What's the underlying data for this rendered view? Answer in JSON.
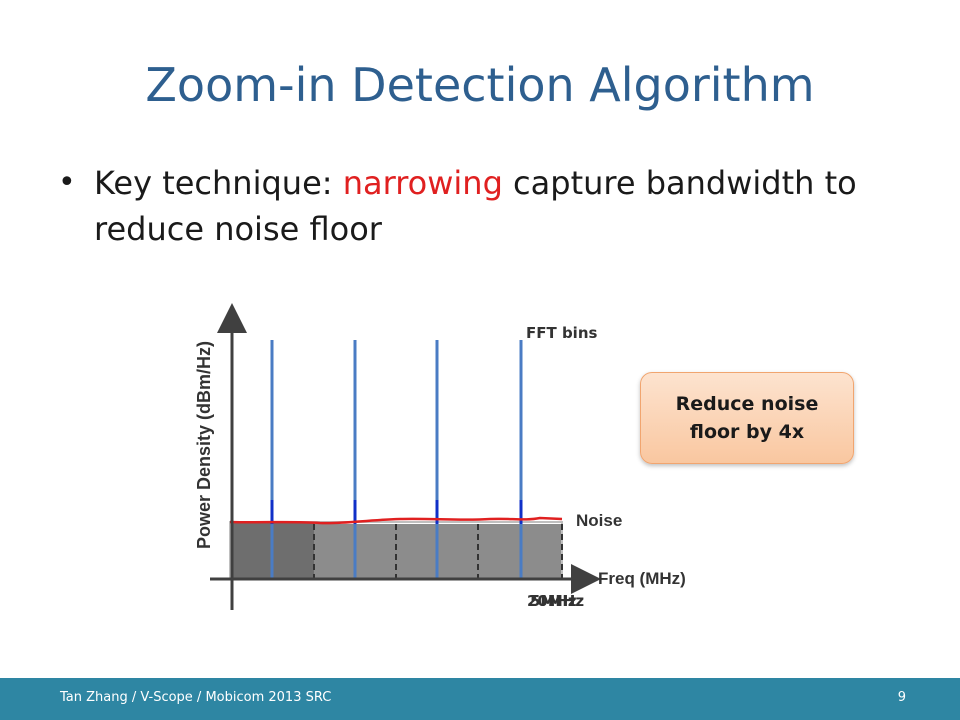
{
  "slide": {
    "title": "Zoom-in Detection Algorithm",
    "bullet": {
      "prefix": "Key technique: ",
      "highlight": "narrowing",
      "suffix": " capture bandwidth to reduce noise floor"
    }
  },
  "diagram": {
    "y_axis_label": "Power Density (dBm/Hz)",
    "x_axis_label": "Freq (MHz)",
    "fft_label": "FFT bins",
    "noise_label": "Noise",
    "bandwidth_label_1": "20MHz",
    "bandwidth_label_2": "5MHz",
    "callout_line1": "Reduce noise",
    "callout_line2": "floor by 4x",
    "colors": {
      "bins": "#4a7cc4",
      "noise": "#e02020",
      "fill": "#777777"
    }
  },
  "footer": {
    "credit": "Tan Zhang / V-Scope / Mobicom 2013 SRC",
    "page": "9"
  }
}
